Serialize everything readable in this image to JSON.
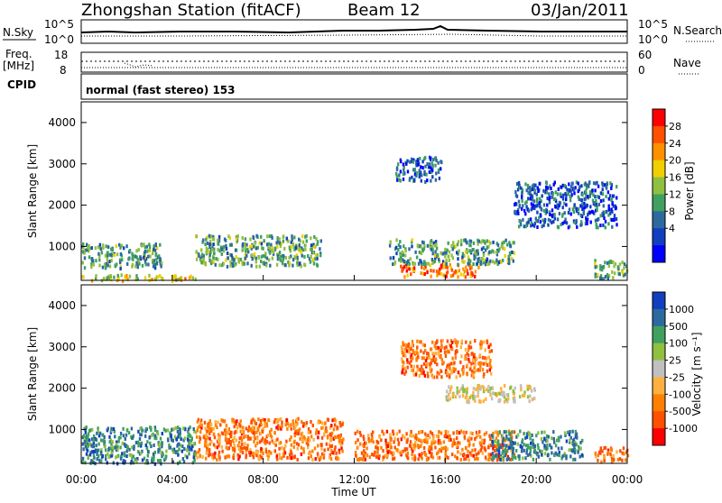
{
  "header": {
    "station": "Zhongshan Station (fitACF)",
    "beam": "Beam 12",
    "date": "03/Jan/2011"
  },
  "top_panels": {
    "nsky_label": "N.Sky",
    "nsky_ticks": [
      "10^5",
      "10^0"
    ],
    "nsearch_label": "N.Search",
    "nsearch_ticks": [
      "10^5",
      "10^0"
    ],
    "freq_label": "Freq.",
    "freq_unit": "[MHz]",
    "freq_ticks": [
      "18",
      "8"
    ],
    "nave_label": "Nave",
    "nave_ticks": [
      "60",
      "0"
    ],
    "cpid_label": "CPID",
    "cpid_text": "normal (fast stereo) 153"
  },
  "chart_data": [
    {
      "type": "heatmap",
      "title": "",
      "xlabel": "Time UT",
      "ylabel": "Slant Range [km]",
      "xlim": [
        0,
        24
      ],
      "ylim": [
        180,
        4500
      ],
      "x_ticks": [
        "00:00",
        "04:00",
        "08:00",
        "12:00",
        "16:00",
        "20:00",
        "00:00"
      ],
      "y_ticks": [
        "1000",
        "2000",
        "3000",
        "4000"
      ],
      "colorbar": {
        "label": "Power [dB]",
        "ticks": [
          "28",
          "24",
          "20",
          "16",
          "12",
          "8",
          "4"
        ],
        "colors": [
          "#ff0000",
          "#ff5000",
          "#ff9000",
          "#f0d000",
          "#90c040",
          "#40a060",
          "#2c6a9e",
          "#1040c0",
          "#0000ff"
        ]
      },
      "echo_bands": [
        {
          "t0": 0.0,
          "t1": 5.0,
          "r0": 200,
          "r1": 350,
          "level": "high"
        },
        {
          "t0": 0.0,
          "t1": 3.5,
          "r0": 500,
          "r1": 1100,
          "level": "medium"
        },
        {
          "t0": 5.0,
          "t1": 10.5,
          "r0": 550,
          "r1": 1300,
          "level": "medium"
        },
        {
          "t0": 14.0,
          "t1": 17.5,
          "r0": 300,
          "r1": 600,
          "level": "very high"
        },
        {
          "t0": 13.5,
          "t1": 19.0,
          "r0": 600,
          "r1": 1200,
          "level": "medium"
        },
        {
          "t0": 13.8,
          "t1": 15.8,
          "r0": 2600,
          "r1": 3200,
          "level": "low"
        },
        {
          "t0": 19.0,
          "t1": 23.5,
          "r0": 1500,
          "r1": 2600,
          "level": "low"
        },
        {
          "t0": 22.5,
          "t1": 24.0,
          "r0": 250,
          "r1": 700,
          "level": "medium"
        }
      ]
    },
    {
      "type": "heatmap",
      "title": "",
      "xlabel": "Time UT",
      "ylabel": "Slant Range [km]",
      "xlim": [
        0,
        24
      ],
      "ylim": [
        180,
        4500
      ],
      "x_ticks": [
        "00:00",
        "04:00",
        "08:00",
        "12:00",
        "16:00",
        "20:00",
        "00:00"
      ],
      "y_ticks": [
        "1000",
        "2000",
        "3000",
        "4000"
      ],
      "colorbar": {
        "label": "Velocity [m s⁻¹]",
        "ticks": [
          "1000",
          "500",
          "100",
          "25",
          "-25",
          "-100",
          "-500",
          "-1000"
        ],
        "colors": [
          "#1040c0",
          "#2c6a9e",
          "#40a060",
          "#90c040",
          "#c0c0c0",
          "#ffb040",
          "#ff8000",
          "#ff5000",
          "#ff0000"
        ]
      },
      "echo_bands": [
        {
          "t0": 0.0,
          "t1": 5.0,
          "r0": 200,
          "r1": 1100,
          "velocity": "positive (toward)"
        },
        {
          "t0": 5.0,
          "t1": 11.5,
          "r0": 300,
          "r1": 1300,
          "velocity": "negative (away)"
        },
        {
          "t0": 12.0,
          "t1": 19.0,
          "r0": 300,
          "r1": 1000,
          "velocity": "negative (away)"
        },
        {
          "t0": 14.0,
          "t1": 18.0,
          "r0": 2300,
          "r1": 3200,
          "velocity": "negative"
        },
        {
          "t0": 18.0,
          "t1": 22.0,
          "r0": 300,
          "r1": 1000,
          "velocity": "positive"
        },
        {
          "t0": 16.0,
          "t1": 20.0,
          "r0": 1700,
          "r1": 2100,
          "velocity": "near zero"
        },
        {
          "t0": 22.5,
          "t1": 24.0,
          "r0": 250,
          "r1": 600,
          "velocity": "negative"
        }
      ]
    }
  ]
}
